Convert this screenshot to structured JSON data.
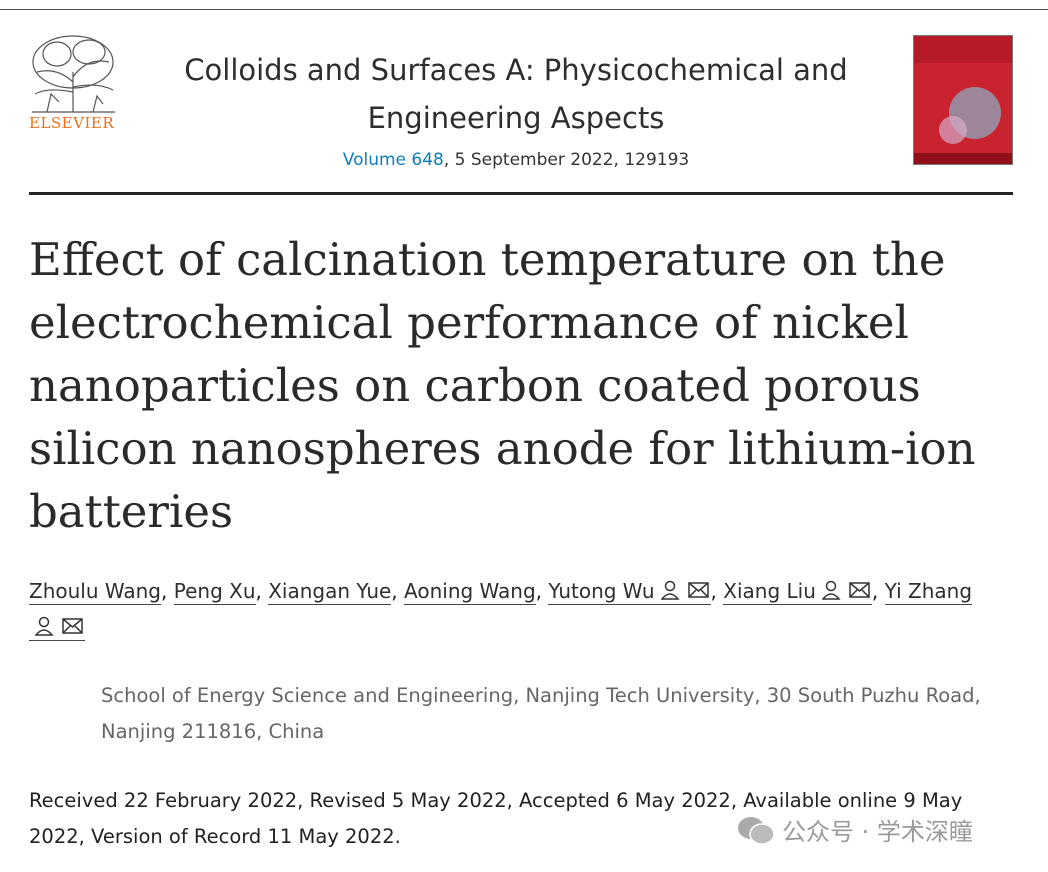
{
  "header": {
    "publisher": "ELSEVIER",
    "journal_lines": [
      "Colloids and Surfaces A: Physicochemical and",
      "Engineering Aspects"
    ],
    "volume": "Volume 648",
    "issue_info": ", 5 September 2022, 129193"
  },
  "article": {
    "title_lines": [
      "Effect of calcination temperature on the",
      "electrochemical performance of nickel",
      "nanoparticles on carbon coated porous",
      "silicon nanospheres anode for lithium-ion",
      "batteries"
    ],
    "author_separator": ",",
    "authors": [
      {
        "name": "Zhoulu Wang",
        "corresponding": false
      },
      {
        "name": "Peng Xu",
        "corresponding": false
      },
      {
        "name": "Xiangan Yue",
        "corresponding": false
      },
      {
        "name": "Aoning Wang",
        "corresponding": false
      },
      {
        "name": "Yutong Wu",
        "corresponding": true
      },
      {
        "name": "Xiang Liu",
        "corresponding": true
      },
      {
        "name": "Yi Zhang",
        "corresponding": true
      }
    ],
    "affiliation": "School of Energy Science and Engineering, Nanjing Tech University, 30 South Puzhu Road, Nanjing 211816, China",
    "history": "Received 22 February 2022, Revised 5 May 2022, Accepted 6 May 2022, Available online 9 May 2022, Version of Record 11 May 2022."
  },
  "watermark": "公众号 · 学术深瞳"
}
